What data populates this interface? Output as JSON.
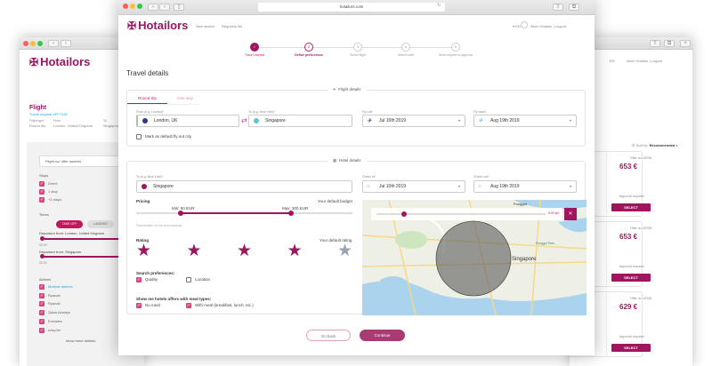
{
  "brand": {
    "name": "Hotailors",
    "accent": "#9c1660",
    "pink": "#d9467f"
  },
  "browser": {
    "url": "hotailors.com"
  },
  "nav": {
    "new_search": "New search",
    "requests_list": "Requests list",
    "lang": "EN",
    "user": "Alwin Hotailor",
    "separator": "|",
    "logout": "Logout"
  },
  "stepper": [
    {
      "label": "Travel request",
      "state": "done",
      "num": "✓"
    },
    {
      "label": "Define preferences",
      "state": "active",
      "num": "2"
    },
    {
      "label": "Select flight",
      "state": "todo",
      "num": "3"
    },
    {
      "label": "Select hotel",
      "state": "todo",
      "num": "4"
    },
    {
      "label": "Send request to approve",
      "state": "todo",
      "num": "5"
    }
  ],
  "page_title": "Travel details",
  "flight": {
    "legend": "Flight details",
    "tabs": [
      "Round trip",
      "One way"
    ],
    "from_label": "From (e.g. London)*",
    "from_value": "London, UK",
    "to_label": "To (e.g. New York)*",
    "to_value": "Singapore",
    "out_label": "Fly out*",
    "out_value": "Jul 10th 2019",
    "back_label": "Fly back*",
    "back_value": "Aug 19th 2019",
    "default_city": "Mark as default fly out city"
  },
  "hotel": {
    "legend": "Hotel details",
    "to_label": "To (e.g. New York)*",
    "to_value": "Singapore",
    "in_label": "Check in*",
    "in_value": "Jul 10th 2019",
    "outl": "Check out*",
    "out_value": "Aug 19th 2019",
    "pricing": "Pricing",
    "default_budget": "Your default budget",
    "min": "Min: 50 EUR",
    "max": "Max: 300 EUR",
    "remember": "Remember to be economical",
    "rating": "Rating",
    "default_rating": "Your default rating",
    "stars": [
      "1",
      "2",
      "3",
      "4",
      "5"
    ],
    "selected_rating": 4,
    "search_prefs": "Search preferences:",
    "pref_quality": "Quality",
    "pref_location": "Location",
    "meal": "Show me hotels offers with meal types:",
    "no_meal": "No meal",
    "with_meal": "With meal (breakfast, lunch, etc.)",
    "radius": "5.00 km",
    "map_labels": {
      "city": "Singapore",
      "park": "Punggol Park",
      "area": "Punggol"
    }
  },
  "actions": {
    "back": "Go back",
    "continue": "Continue"
  },
  "left": {
    "title": "Flight",
    "request": "Travel request #FF7248",
    "type_label": "Flight type",
    "type": "Round trip",
    "from_label": "From",
    "from": "London, United Kingdom",
    "to_label": "To",
    "to": "Singapore",
    "search_placeholder": "Flight no/ offer number",
    "stops": "Stops",
    "stop_items": [
      "Direct",
      "1 stop",
      "+2 stops"
    ],
    "times": "Times",
    "take_off": "TAKE OFF",
    "landing": "LANDING",
    "dep1": "Departure from: London, United Kingdom",
    "dep2": "Departure from: Singapore",
    "time0": "00:00",
    "airlines": "Airlines",
    "airline_items": [
      "Multiple airlines",
      "Ryanair",
      "Ryanair",
      "Qatar Airways",
      "Emirates",
      "easyJet"
    ],
    "more": "show more airlines"
  },
  "right": {
    "sort_label": "Sort by:",
    "sort_value": "Recommended",
    "offers": [
      {
        "offer": "Offer no. 48756",
        "price": "653 €",
        "note": "Approval required",
        "select": "SELECT"
      },
      {
        "offer": "Offer no. 48756",
        "price": "653 €",
        "note": "Approval required",
        "select": "SELECT"
      },
      {
        "offer": "Offer no. 48756",
        "price": "629 €",
        "note": "Approval required",
        "select": "SELECT"
      }
    ]
  }
}
